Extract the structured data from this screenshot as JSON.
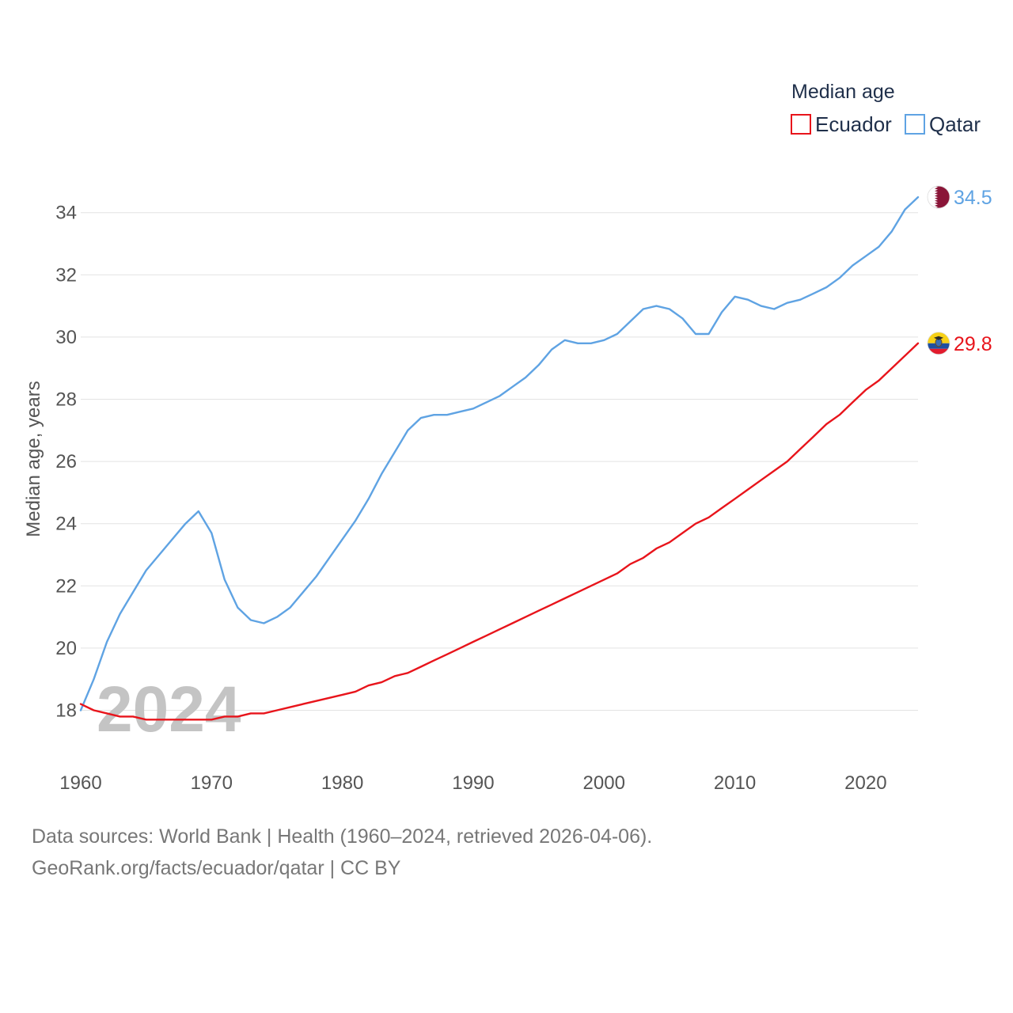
{
  "chart_data": {
    "type": "line",
    "title": "",
    "legend_title": "Median age",
    "legend_position": "top-right",
    "xlabel": "",
    "ylabel": "Median age, years",
    "xlim": [
      1960,
      2024
    ],
    "ylim": [
      17,
      35
    ],
    "x_ticks": [
      1960,
      1970,
      1980,
      1990,
      2000,
      2010,
      2020
    ],
    "y_ticks": [
      18,
      20,
      22,
      24,
      26,
      28,
      30,
      32,
      34
    ],
    "grid": true,
    "watermark_year": "2024",
    "x": [
      1960,
      1961,
      1962,
      1963,
      1964,
      1965,
      1966,
      1967,
      1968,
      1969,
      1970,
      1971,
      1972,
      1973,
      1974,
      1975,
      1976,
      1977,
      1978,
      1979,
      1980,
      1981,
      1982,
      1983,
      1984,
      1985,
      1986,
      1987,
      1988,
      1989,
      1990,
      1991,
      1992,
      1993,
      1994,
      1995,
      1996,
      1997,
      1998,
      1999,
      2000,
      2001,
      2002,
      2003,
      2004,
      2005,
      2006,
      2007,
      2008,
      2009,
      2010,
      2011,
      2012,
      2013,
      2014,
      2015,
      2016,
      2017,
      2018,
      2019,
      2020,
      2021,
      2022,
      2023,
      2024
    ],
    "series": [
      {
        "name": "Ecuador",
        "color": "#e8141b",
        "end_label": "29.8",
        "flag": "ecuador-flag-icon",
        "values": [
          18.2,
          18.0,
          17.9,
          17.8,
          17.8,
          17.7,
          17.7,
          17.7,
          17.7,
          17.7,
          17.7,
          17.8,
          17.8,
          17.9,
          17.9,
          18.0,
          18.1,
          18.2,
          18.3,
          18.4,
          18.5,
          18.6,
          18.8,
          18.9,
          19.1,
          19.2,
          19.4,
          19.6,
          19.8,
          20.0,
          20.2,
          20.4,
          20.6,
          20.8,
          21.0,
          21.2,
          21.4,
          21.6,
          21.8,
          22.0,
          22.2,
          22.4,
          22.7,
          22.9,
          23.2,
          23.4,
          23.7,
          24.0,
          24.2,
          24.5,
          24.8,
          25.1,
          25.4,
          25.7,
          26.0,
          26.4,
          26.8,
          27.2,
          27.5,
          27.9,
          28.3,
          28.6,
          29.0,
          29.4,
          29.8
        ]
      },
      {
        "name": "Qatar",
        "color": "#5fa3e3",
        "end_label": "34.5",
        "flag": "qatar-flag-icon",
        "values": [
          18.0,
          19.0,
          20.2,
          21.1,
          21.8,
          22.5,
          23.0,
          23.5,
          24.0,
          24.4,
          23.7,
          22.2,
          21.3,
          20.9,
          20.8,
          21.0,
          21.3,
          21.8,
          22.3,
          22.9,
          23.5,
          24.1,
          24.8,
          25.6,
          26.3,
          27.0,
          27.4,
          27.5,
          27.5,
          27.6,
          27.7,
          27.9,
          28.1,
          28.4,
          28.7,
          29.1,
          29.6,
          29.9,
          29.8,
          29.8,
          29.9,
          30.1,
          30.5,
          30.9,
          31.0,
          30.9,
          30.6,
          30.1,
          30.1,
          30.8,
          31.3,
          31.2,
          31.0,
          30.9,
          31.1,
          31.2,
          31.4,
          31.6,
          31.9,
          32.3,
          32.6,
          32.9,
          33.4,
          34.1,
          34.5
        ]
      }
    ]
  },
  "footer": {
    "line1": "Data sources: World Bank | Health (1960–2024, retrieved 2026-04-06).",
    "line2": "GeoRank.org/facts/ecuador/qatar | CC BY"
  }
}
